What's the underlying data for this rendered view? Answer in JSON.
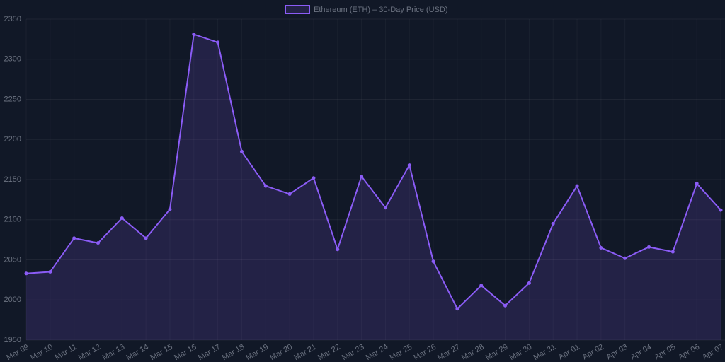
{
  "chart_data": {
    "type": "line",
    "fill": true,
    "grid": true,
    "legend": "top",
    "categories": [
      "Mar 09",
      "Mar 10",
      "Mar 11",
      "Mar 12",
      "Mar 13",
      "Mar 14",
      "Mar 15",
      "Mar 16",
      "Mar 17",
      "Mar 18",
      "Mar 19",
      "Mar 20",
      "Mar 21",
      "Mar 22",
      "Mar 23",
      "Mar 24",
      "Mar 25",
      "Mar 26",
      "Mar 27",
      "Mar 28",
      "Mar 29",
      "Mar 30",
      "Mar 31",
      "Apr 01",
      "Apr 02",
      "Apr 03",
      "Apr 04",
      "Apr 05",
      "Apr 06",
      "Apr 07"
    ],
    "series": [
      {
        "name": "Ethereum (ETH) – 30-Day Price (USD)",
        "color": "#8b5cf6",
        "values": [
          2033,
          2035,
          2077,
          2071,
          2102,
          2077,
          2113,
          2331,
          2321,
          2185,
          2142,
          2132,
          2152,
          2063,
          2154,
          2115,
          2168,
          2048,
          1989,
          2018,
          1993,
          2021,
          2095,
          2142,
          2065,
          2052,
          2066,
          2060,
          2145,
          2112
        ]
      }
    ],
    "ylim": [
      1950,
      2350
    ],
    "yticks": [
      1950,
      2000,
      2050,
      2100,
      2150,
      2200,
      2250,
      2300,
      2350
    ]
  }
}
